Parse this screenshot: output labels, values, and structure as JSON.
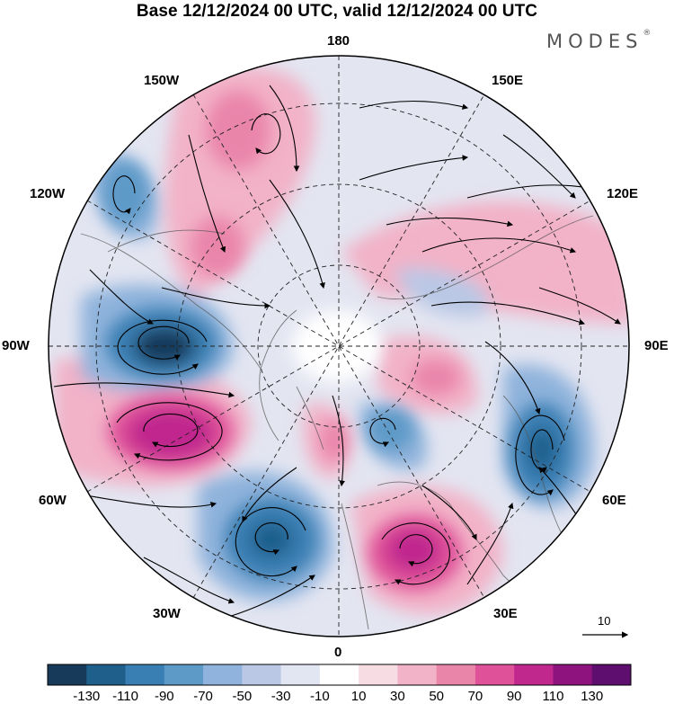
{
  "title": "Base 12/12/2024 00 UTC, valid 12/12/2024 00 UTC",
  "brand": {
    "name": "MODES",
    "mark": "®"
  },
  "longitude_labels": {
    "top": "180",
    "bottom": "0",
    "left": "90W",
    "right": "90E",
    "upper_left": "150W",
    "upper_right": "150E",
    "mid_upper_left": "120W",
    "mid_upper_right": "120E",
    "mid_lower_left": "60W",
    "mid_lower_right": "60E",
    "lower_left": "30W",
    "lower_right": "30E"
  },
  "vector_reference": {
    "value": "10"
  },
  "colorbar": {
    "labels": [
      "-130",
      "-110",
      "-90",
      "-70",
      "-50",
      "-30",
      "-10",
      "10",
      "30",
      "50",
      "70",
      "90",
      "110",
      "130"
    ],
    "colors": [
      "#173a5b",
      "#1f5f8c",
      "#3a7fb3",
      "#5d9ac8",
      "#8fb3dc",
      "#bac8e5",
      "#e2e5f2",
      "#ffffff",
      "#f7dce4",
      "#f2b2c7",
      "#ea85aa",
      "#df5199",
      "#c0288e",
      "#8e137f",
      "#5e0e6e"
    ]
  },
  "anomaly_centers": [
    {
      "id": "low-90w",
      "lon_label": "90W",
      "sign": "negative",
      "level": -130
    },
    {
      "id": "high-60w",
      "lon_label": "60W",
      "sign": "positive",
      "level": 130
    },
    {
      "id": "low-30w",
      "lon_label": "30W",
      "sign": "negative",
      "level": -110
    },
    {
      "id": "high-30e",
      "lon_label": "30E",
      "sign": "positive",
      "level": 110
    },
    {
      "id": "low-60e",
      "lon_label": "60E",
      "sign": "negative",
      "level": -90
    },
    {
      "id": "high-150w",
      "lon_label": "150W",
      "sign": "positive",
      "level": 70
    },
    {
      "id": "low-120w",
      "lon_label": "120W",
      "sign": "negative",
      "level": -70
    },
    {
      "id": "high-120e",
      "lon_label": "120E",
      "sign": "positive",
      "level": 50
    }
  ]
}
